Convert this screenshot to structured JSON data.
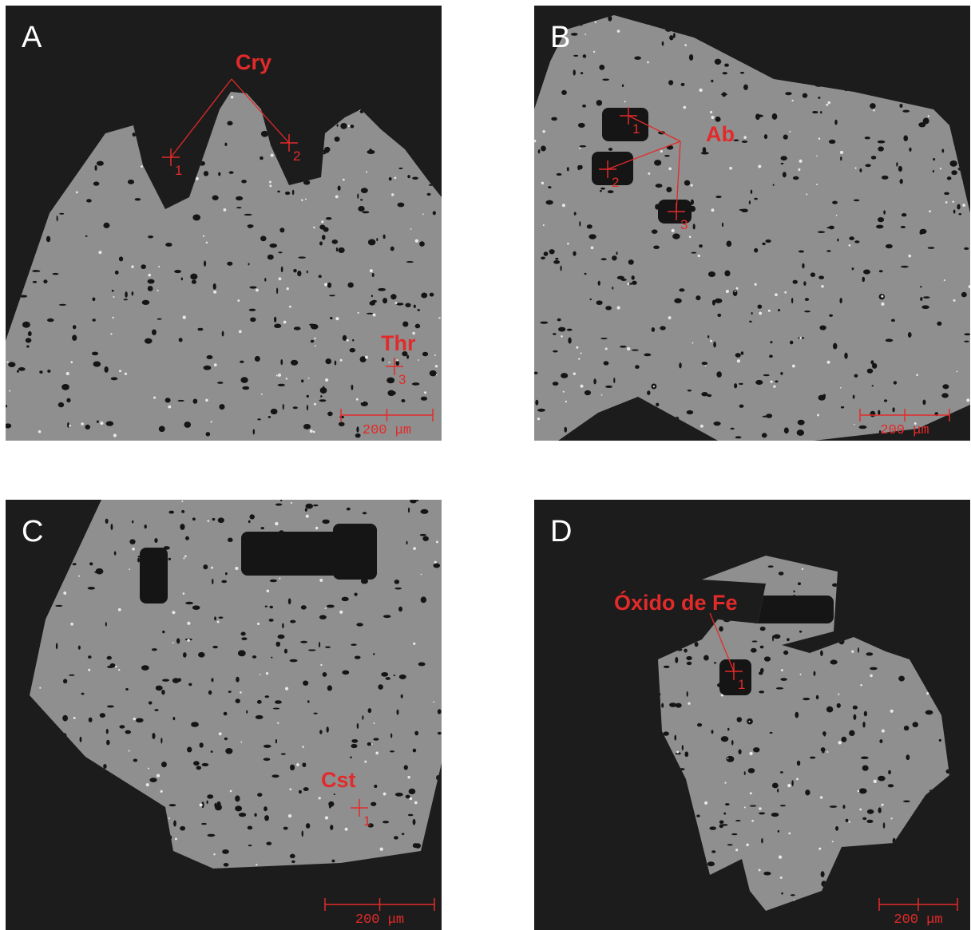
{
  "panels": [
    {
      "letter": "A",
      "labels": [
        {
          "text": "Cry",
          "points": [
            "1",
            "2"
          ]
        },
        {
          "text": "Thr",
          "points": [
            "3"
          ]
        }
      ],
      "scale_bar": "200 μm"
    },
    {
      "letter": "B",
      "labels": [
        {
          "text": "Ab",
          "points": [
            "1",
            "2",
            "3"
          ]
        }
      ],
      "scale_bar": "200 μm"
    },
    {
      "letter": "C",
      "labels": [
        {
          "text": "Cst",
          "points": [
            "1"
          ]
        }
      ],
      "scale_bar": "200 μm"
    },
    {
      "letter": "D",
      "labels": [
        {
          "text": "Óxido de Fe",
          "points": [
            "1"
          ]
        }
      ],
      "scale_bar": "200 μm"
    }
  ]
}
